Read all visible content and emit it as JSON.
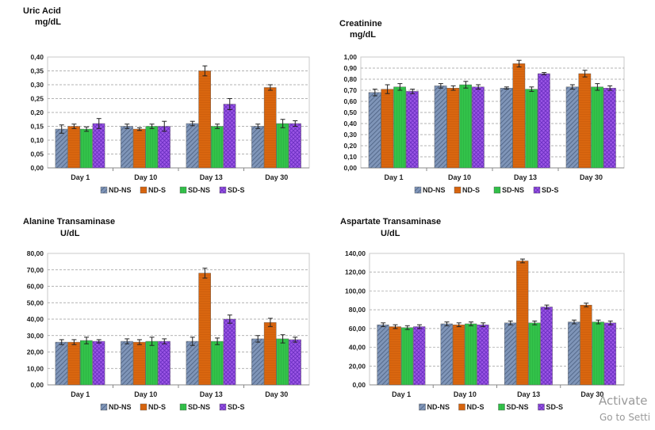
{
  "legend_colors": [
    "#7f95b8",
    "#d9660f",
    "#33c24a",
    "#9b55e6"
  ],
  "chart_data": [
    {
      "type": "bar",
      "title": "Uric Acid",
      "unit": "mg/dL",
      "categories": [
        "Day 1",
        "Day 10",
        "Day 13",
        "Day 30"
      ],
      "ylim": [
        0,
        0.4
      ],
      "ytick_step": 0.05,
      "yticks": [
        "0,00",
        "0,05",
        "0,10",
        "0,15",
        "0,20",
        "0,25",
        "0,30",
        "0,35",
        "0,40"
      ],
      "grid": true,
      "legend": "bottom",
      "series": [
        {
          "name": "ND-NS",
          "values": [
            0.14,
            0.15,
            0.16,
            0.15
          ],
          "errors": [
            0.015,
            0.008,
            0.008,
            0.008
          ]
        },
        {
          "name": "ND-S",
          "values": [
            0.15,
            0.14,
            0.35,
            0.29
          ],
          "errors": [
            0.008,
            0.005,
            0.018,
            0.01
          ]
        },
        {
          "name": "SD-NS",
          "values": [
            0.14,
            0.15,
            0.15,
            0.16
          ],
          "errors": [
            0.008,
            0.008,
            0.008,
            0.015
          ]
        },
        {
          "name": "SD-S",
          "values": [
            0.16,
            0.15,
            0.23,
            0.16
          ],
          "errors": [
            0.018,
            0.018,
            0.02,
            0.01
          ]
        }
      ]
    },
    {
      "type": "bar",
      "title": "Creatinine",
      "unit": "mg/dL",
      "categories": [
        "Day 1",
        "Day 10",
        "Day 13",
        "Day 30"
      ],
      "ylim": [
        0,
        1.0
      ],
      "ytick_step": 0.1,
      "yticks": [
        "0,00",
        "0,10",
        "0,20",
        "0,30",
        "0,40",
        "0,50",
        "0,60",
        "0,70",
        "0,80",
        "0,90",
        "1,00"
      ],
      "grid": true,
      "legend": "bottom",
      "series": [
        {
          "name": "ND-NS",
          "values": [
            0.68,
            0.74,
            0.72,
            0.73
          ],
          "errors": [
            0.03,
            0.02,
            0.01,
            0.02
          ]
        },
        {
          "name": "ND-S",
          "values": [
            0.71,
            0.72,
            0.94,
            0.85
          ],
          "errors": [
            0.04,
            0.02,
            0.03,
            0.03
          ]
        },
        {
          "name": "SD-NS",
          "values": [
            0.73,
            0.75,
            0.71,
            0.73
          ],
          "errors": [
            0.03,
            0.03,
            0.02,
            0.03
          ]
        },
        {
          "name": "SD-S",
          "values": [
            0.69,
            0.73,
            0.85,
            0.72
          ],
          "errors": [
            0.02,
            0.02,
            0.01,
            0.02
          ]
        }
      ]
    },
    {
      "type": "bar",
      "title": "Alanine Transaminase",
      "unit": "U/dL",
      "categories": [
        "Day 1",
        "Day 10",
        "Day 13",
        "Day 30"
      ],
      "ylim": [
        0,
        80
      ],
      "ytick_step": 10,
      "yticks": [
        "0,00",
        "10,00",
        "20,00",
        "30,00",
        "40,00",
        "50,00",
        "60,00",
        "70,00",
        "80,00"
      ],
      "grid": true,
      "legend": "bottom",
      "series": [
        {
          "name": "ND-NS",
          "values": [
            26,
            26.5,
            26.5,
            28
          ],
          "errors": [
            1.5,
            1.5,
            2.5,
            2
          ]
        },
        {
          "name": "ND-S",
          "values": [
            26,
            26,
            68,
            38
          ],
          "errors": [
            1.5,
            1.5,
            3,
            2.5
          ]
        },
        {
          "name": "SD-NS",
          "values": [
            27,
            26.5,
            26.5,
            28
          ],
          "errors": [
            2,
            2.5,
            2,
            2.5
          ]
        },
        {
          "name": "SD-S",
          "values": [
            26.5,
            26.5,
            40,
            27.5
          ],
          "errors": [
            1,
            1.5,
            2.5,
            1.5
          ]
        }
      ]
    },
    {
      "type": "bar",
      "title": "Aspartate Transaminase",
      "unit": "U/dL",
      "categories": [
        "Day 1",
        "Day 10",
        "Day 13",
        "Day 30"
      ],
      "ylim": [
        0,
        140
      ],
      "ytick_step": 20,
      "yticks": [
        "0,00",
        "20,00",
        "40,00",
        "60,00",
        "80,00",
        "100,00",
        "120,00",
        "140,00"
      ],
      "grid": true,
      "legend": "bottom",
      "series": [
        {
          "name": "ND-NS",
          "values": [
            64,
            65,
            66,
            67
          ],
          "errors": [
            2,
            2,
            2,
            2
          ]
        },
        {
          "name": "ND-S",
          "values": [
            62,
            64,
            132,
            85
          ],
          "errors": [
            2,
            2,
            2,
            2
          ]
        },
        {
          "name": "SD-NS",
          "values": [
            61,
            65,
            66,
            67
          ],
          "errors": [
            2,
            2,
            2,
            2
          ]
        },
        {
          "name": "SD-S",
          "values": [
            62,
            64,
            83,
            66
          ],
          "errors": [
            2,
            2,
            2,
            2
          ]
        }
      ]
    }
  ],
  "watermark": {
    "line1": "Activate",
    "line2": "Go to Setti"
  }
}
